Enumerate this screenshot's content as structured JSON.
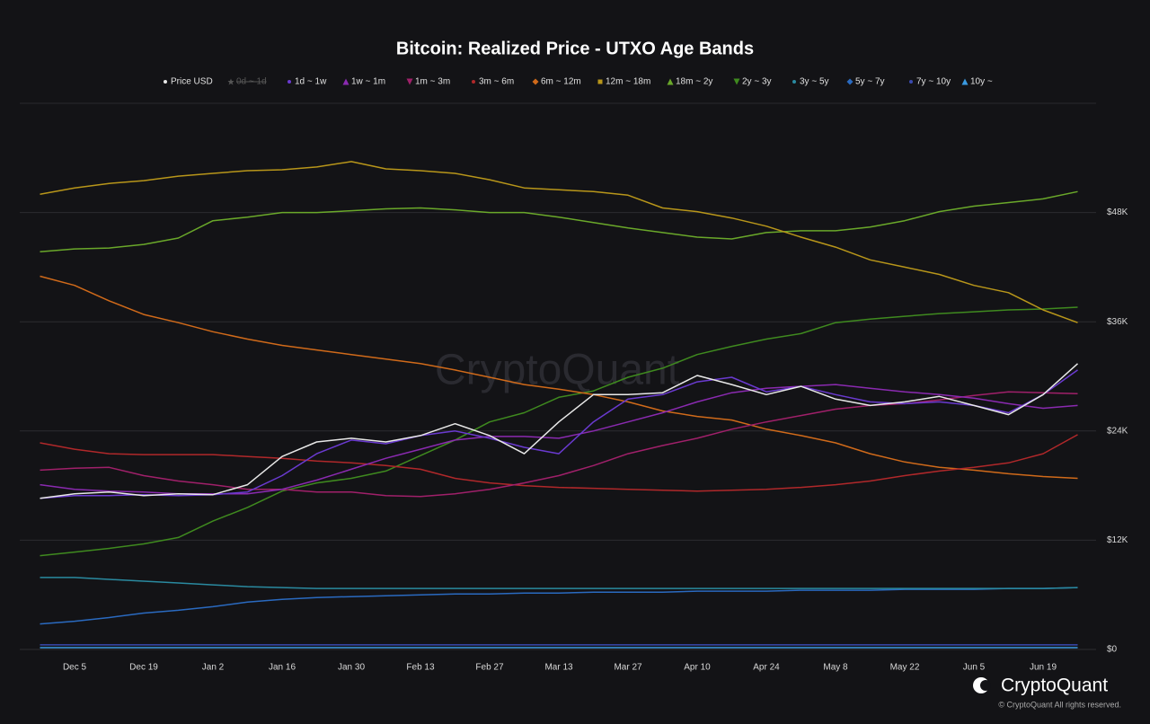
{
  "chart_data": {
    "type": "line",
    "title": "Bitcoin: Realized Price - UTXO Age Bands",
    "watermark": "CryptoQuant",
    "brand": "CryptoQuant",
    "copyright": "© CryptoQuant All rights reserved.",
    "categories": [
      null,
      "Dec 5",
      null,
      "Dec 19",
      null,
      "Jan 2",
      null,
      "Jan 16",
      null,
      "Jan 30",
      null,
      "Feb 13",
      null,
      "Feb 27",
      null,
      "Mar 13",
      null,
      "Mar 27",
      null,
      "Apr 10",
      null,
      "Apr 24",
      null,
      "May 8",
      null,
      "May 22",
      null,
      "Jun 5",
      null,
      "Jun 19",
      null
    ],
    "ylim": [
      0,
      60000
    ],
    "yticks": [
      {
        "value": 0,
        "label": "$0"
      },
      {
        "value": 12000,
        "label": "$12K"
      },
      {
        "value": 24000,
        "label": "$24K"
      },
      {
        "value": 36000,
        "label": "$36K"
      },
      {
        "value": 48000,
        "label": "$48K"
      }
    ],
    "grid": true,
    "series": [
      {
        "name": "Price USD",
        "color": "#e8e8e8",
        "marker": "circle",
        "values": [
          16600,
          17100,
          17300,
          16900,
          17100,
          17000,
          18100,
          21200,
          22800,
          23200,
          22800,
          23500,
          24800,
          23500,
          21500,
          25000,
          28000,
          28000,
          28200,
          30100,
          29100,
          28000,
          28900,
          27500,
          26800,
          27200,
          27800,
          26800,
          25800,
          28000,
          31400
        ]
      },
      {
        "name": "0d ~ 1d",
        "color": "#666666",
        "marker": "star",
        "visible": false
      },
      {
        "name": "1d ~ 1w",
        "color": "#6a3ad0",
        "marker": "circle",
        "values": [
          16600,
          16900,
          16900,
          17000,
          16900,
          17000,
          17300,
          19100,
          21500,
          23000,
          22600,
          23500,
          24000,
          23200,
          22200,
          21500,
          25000,
          27500,
          28000,
          29400,
          29900,
          28300,
          28900,
          28000,
          27200,
          27000,
          27200,
          26800,
          26000,
          28000,
          30700
        ]
      },
      {
        "name": "1w ~ 1m",
        "color": "#8a2ab0",
        "marker": "triangle",
        "values": [
          18100,
          17600,
          17400,
          17300,
          17100,
          17100,
          17100,
          17600,
          18600,
          19800,
          21000,
          22000,
          23000,
          23400,
          23400,
          23200,
          24000,
          25000,
          26000,
          27200,
          28200,
          28700,
          28900,
          29100,
          28700,
          28300,
          28000,
          27600,
          27000,
          26500,
          26800
        ]
      },
      {
        "name": "1m ~ 3m",
        "color": "#a0206a",
        "marker": "triangle-down",
        "values": [
          19700,
          19900,
          20000,
          19100,
          18500,
          18100,
          17600,
          17600,
          17300,
          17300,
          16900,
          16800,
          17100,
          17600,
          18300,
          19100,
          20200,
          21500,
          22400,
          23200,
          24200,
          25000,
          25700,
          26400,
          26800,
          27000,
          27400,
          27900,
          28300,
          28200,
          28100
        ]
      },
      {
        "name": "3m ~ 6m",
        "color": "#b0282a",
        "marker": "circle",
        "values": [
          22700,
          22000,
          21500,
          21400,
          21400,
          21400,
          21200,
          21000,
          20700,
          20500,
          20200,
          19800,
          18800,
          18300,
          18000,
          17800,
          17700,
          17600,
          17500,
          17400,
          17500,
          17600,
          17800,
          18100,
          18500,
          19100,
          19600,
          20000,
          20500,
          21500,
          23600
        ]
      },
      {
        "name": "6m ~ 12m",
        "color": "#d06a1a",
        "marker": "diamond",
        "values": [
          41000,
          40000,
          38300,
          36800,
          35900,
          34900,
          34100,
          33400,
          32900,
          32400,
          31900,
          31400,
          30700,
          29900,
          29100,
          28600,
          28000,
          27200,
          26200,
          25600,
          25200,
          24200,
          23500,
          22700,
          21500,
          20600,
          20000,
          19700,
          19300,
          19000,
          18800
        ]
      },
      {
        "name": "12m ~ 18m",
        "color": "#b8961a",
        "marker": "square",
        "values": [
          50000,
          50700,
          51200,
          51500,
          52000,
          52300,
          52600,
          52700,
          53000,
          53600,
          52800,
          52600,
          52300,
          51600,
          50700,
          50500,
          50300,
          49900,
          48500,
          48100,
          47400,
          46500,
          45300,
          44200,
          42800,
          42000,
          41200,
          40000,
          39200,
          37300,
          35900
        ]
      },
      {
        "name": "18m ~ 2y",
        "color": "#6aa82a",
        "marker": "triangle",
        "values": [
          43700,
          44000,
          44100,
          44500,
          45200,
          47100,
          47500,
          48000,
          48000,
          48200,
          48400,
          48500,
          48300,
          48000,
          48000,
          47500,
          46900,
          46300,
          45800,
          45300,
          45100,
          45800,
          46000,
          46000,
          46400,
          47100,
          48100,
          48700,
          49100,
          49500,
          50300
        ]
      },
      {
        "name": "2y ~ 3y",
        "color": "#3f8a1f",
        "marker": "triangle-down",
        "values": [
          10300,
          10700,
          11100,
          11600,
          12300,
          14100,
          15600,
          17400,
          18300,
          18800,
          19600,
          21300,
          23000,
          25000,
          26000,
          27700,
          28400,
          29900,
          30900,
          32400,
          33300,
          34100,
          34700,
          35900,
          36300,
          36600,
          36900,
          37100,
          37300,
          37400,
          37600
        ]
      },
      {
        "name": "3y ~ 5y",
        "color": "#2a8aa0",
        "marker": "circle",
        "values": [
          7900,
          7900,
          7700,
          7500,
          7300,
          7100,
          6900,
          6800,
          6700,
          6700,
          6700,
          6700,
          6700,
          6700,
          6700,
          6700,
          6700,
          6700,
          6700,
          6700,
          6700,
          6700,
          6700,
          6700,
          6700,
          6700,
          6700,
          6700,
          6700,
          6700,
          6800
        ]
      },
      {
        "name": "5y ~ 7y",
        "color": "#2a6ac0",
        "marker": "diamond",
        "values": [
          2800,
          3100,
          3500,
          4000,
          4300,
          4700,
          5200,
          5500,
          5700,
          5800,
          5900,
          6000,
          6100,
          6100,
          6200,
          6200,
          6300,
          6300,
          6300,
          6400,
          6400,
          6400,
          6500,
          6500,
          6500,
          6600,
          6600,
          6600,
          6700,
          6700,
          6800
        ]
      },
      {
        "name": "7y ~ 10y",
        "color": "#3a4ab0",
        "marker": "circle",
        "values": [
          500,
          500,
          500,
          500,
          500,
          500,
          500,
          500,
          500,
          500,
          500,
          500,
          500,
          500,
          500,
          500,
          500,
          500,
          500,
          500,
          500,
          500,
          500,
          500,
          500,
          500,
          500,
          500,
          500,
          500,
          500
        ]
      },
      {
        "name": "10y ~",
        "color": "#3a9ae0",
        "marker": "triangle",
        "values": [
          200,
          200,
          200,
          200,
          200,
          200,
          200,
          200,
          200,
          200,
          200,
          200,
          200,
          200,
          200,
          200,
          200,
          200,
          200,
          200,
          200,
          200,
          200,
          200,
          200,
          200,
          200,
          200,
          200,
          200,
          200
        ]
      }
    ]
  }
}
